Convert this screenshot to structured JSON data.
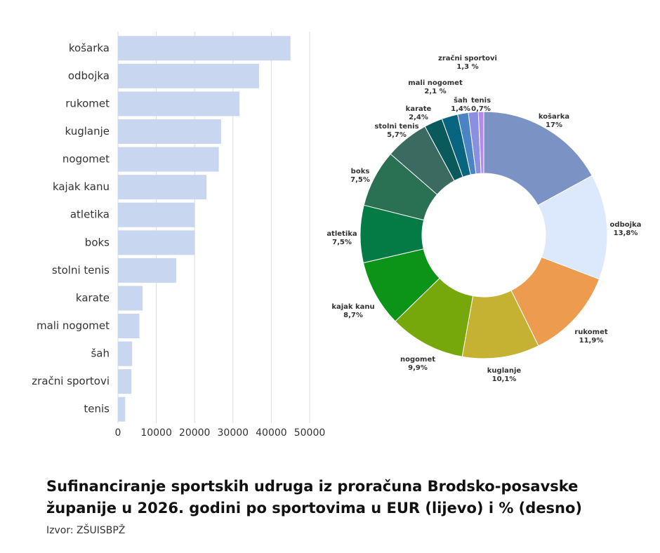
{
  "chart_data": [
    {
      "type": "bar",
      "orientation": "horizontal",
      "categories": [
        "košarka",
        "odbojka",
        "rukomet",
        "kuglanje",
        "nogomet",
        "kajak kanu",
        "atletika",
        "boks",
        "stolni tenis",
        "karate",
        "mali nogomet",
        "šah",
        "zračni sportovi",
        "tenis"
      ],
      "values": [
        45000,
        36800,
        31700,
        26900,
        26300,
        23100,
        20000,
        20000,
        15200,
        6400,
        5600,
        3700,
        3500,
        1900
      ],
      "color": "#c8d6f0",
      "xlim": [
        0,
        50000
      ],
      "xticks": [
        0,
        10000,
        20000,
        30000,
        40000,
        50000
      ],
      "grid": true
    },
    {
      "type": "donut",
      "categories": [
        "košarka",
        "odbojka",
        "rukomet",
        "kuglanje",
        "nogomet",
        "kajak kanu",
        "atletika",
        "boks",
        "stolni tenis",
        "karate",
        "mali nogomet",
        "šah",
        "zračni sportovi",
        "tenis"
      ],
      "values": [
        17,
        13.8,
        11.9,
        10.1,
        9.9,
        8.7,
        7.5,
        7.5,
        5.7,
        2.4,
        2.1,
        1.4,
        1.3,
        0.7
      ],
      "value_labels": [
        "17%",
        "13,8%",
        "11,9%",
        "10,1%",
        "9,9%",
        "8,7%",
        "7,5%",
        "7,5%",
        "5,7%",
        "2,4%",
        "2,1 %",
        "1,4%",
        "1,3 %",
        "0,7%"
      ],
      "colors": [
        "#7b93c4",
        "#dce8fb",
        "#ec9b4f",
        "#c6b232",
        "#76a80c",
        "#0c9419",
        "#047a44",
        "#2a7053",
        "#3b6b60",
        "#0a5a5b",
        "#07657f",
        "#4a84c4",
        "#8b8fe0",
        "#b68ae8"
      ]
    }
  ],
  "title": "Sufinanciranje sportskih udruga iz proračuna Brodsko-posavske županije u 2026. godini po sportovima u EUR (lijevo) i % (desno)",
  "source": "Izvor: ZŠUISBPŽ"
}
